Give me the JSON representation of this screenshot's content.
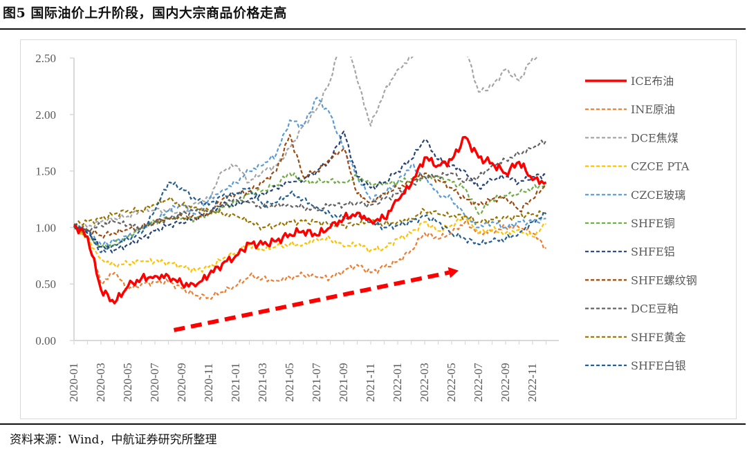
{
  "header": {
    "title": "图5  国际油价上升阶段，国内大宗商品价格走高"
  },
  "footer": {
    "source": "资料来源：Wind，中航证券研究所整理"
  },
  "chart_data": {
    "type": "line",
    "title": "国际油价上升阶段，国内大宗商品价格走高",
    "xlabel": "",
    "ylabel": "",
    "ylim": [
      0,
      2.5
    ],
    "yticks": [
      "0.00",
      "0.50",
      "1.00",
      "1.50",
      "2.00",
      "2.50"
    ],
    "ytick_values": [
      0,
      0.5,
      1.0,
      1.5,
      2.0,
      2.5
    ],
    "xticks": [
      "2020-01",
      "2020-03",
      "2020-05",
      "2020-07",
      "2020-09",
      "2020-11",
      "2021-01",
      "2021-03",
      "2021-05",
      "2021-07",
      "2021-09",
      "2021-11",
      "2022-01",
      "2022-03",
      "2022-05",
      "2022-07",
      "2022-09",
      "2022-11"
    ],
    "x": [
      "2020-01",
      "2020-02",
      "2020-03",
      "2020-04",
      "2020-05",
      "2020-06",
      "2020-07",
      "2020-08",
      "2020-09",
      "2020-10",
      "2020-11",
      "2020-12",
      "2021-01",
      "2021-02",
      "2021-03",
      "2021-04",
      "2021-05",
      "2021-06",
      "2021-07",
      "2021-08",
      "2021-09",
      "2021-10",
      "2021-11",
      "2021-12",
      "2022-01",
      "2022-02",
      "2022-03",
      "2022-04",
      "2022-05",
      "2022-06",
      "2022-07",
      "2022-08",
      "2022-09",
      "2022-10",
      "2022-11",
      "2022-12"
    ],
    "grid": false,
    "legend_position": "right",
    "series": [
      {
        "name": "ICE布油",
        "color": "#ff0000",
        "style": "solid",
        "values": [
          1.02,
          0.92,
          0.45,
          0.33,
          0.48,
          0.55,
          0.57,
          0.57,
          0.5,
          0.48,
          0.58,
          0.68,
          0.75,
          0.86,
          0.85,
          0.88,
          0.94,
          0.97,
          0.93,
          1.0,
          1.08,
          1.13,
          1.06,
          1.08,
          1.24,
          1.38,
          1.62,
          1.55,
          1.6,
          1.8,
          1.62,
          1.57,
          1.48,
          1.58,
          1.42,
          1.4
        ]
      },
      {
        "name": "INE原油",
        "color": "#ed7d31",
        "style": "dashed",
        "values": [
          1.03,
          0.9,
          0.5,
          0.6,
          0.45,
          0.5,
          0.52,
          0.52,
          0.46,
          0.4,
          0.38,
          0.43,
          0.48,
          0.57,
          0.55,
          0.53,
          0.56,
          0.58,
          0.56,
          0.55,
          0.62,
          0.67,
          0.6,
          0.65,
          0.7,
          0.8,
          0.95,
          0.9,
          0.95,
          1.05,
          0.95,
          0.97,
          1.0,
          1.0,
          0.95,
          0.82
        ]
      },
      {
        "name": "DCE焦煤",
        "color": "#a5a5a5",
        "style": "dashed",
        "values": [
          1.02,
          1.0,
          1.05,
          1.08,
          1.1,
          1.15,
          1.15,
          1.15,
          1.12,
          1.22,
          1.25,
          1.5,
          1.55,
          1.4,
          1.5,
          1.55,
          1.7,
          1.9,
          2.05,
          2.3,
          2.8,
          2.3,
          1.9,
          2.2,
          2.4,
          2.5,
          2.8,
          2.9,
          2.7,
          2.6,
          2.2,
          2.25,
          2.4,
          2.3,
          2.5,
          2.55
        ]
      },
      {
        "name": "CZCE PTA",
        "color": "#ffc000",
        "style": "dashed",
        "values": [
          1.02,
          0.9,
          0.72,
          0.67,
          0.68,
          0.7,
          0.7,
          0.69,
          0.66,
          0.62,
          0.65,
          0.72,
          0.78,
          0.85,
          0.8,
          0.83,
          0.85,
          0.85,
          0.9,
          0.9,
          0.83,
          0.85,
          0.8,
          0.82,
          0.9,
          0.95,
          1.05,
          0.97,
          1.02,
          1.1,
          0.95,
          0.98,
          0.95,
          0.98,
          0.92,
          1.03
        ]
      },
      {
        "name": "CZCE玻璃",
        "color": "#5b9bd5",
        "style": "dashed",
        "values": [
          1.0,
          0.97,
          0.85,
          0.88,
          0.92,
          1.0,
          1.05,
          1.15,
          1.2,
          1.12,
          1.25,
          1.33,
          1.4,
          1.5,
          1.55,
          1.65,
          1.95,
          1.9,
          2.15,
          2.0,
          1.7,
          1.45,
          1.25,
          1.3,
          1.4,
          1.55,
          1.45,
          1.3,
          1.25,
          1.1,
          1.0,
          1.05,
          1.0,
          1.05,
          1.05,
          1.08
        ]
      },
      {
        "name": "SHFE铜",
        "color": "#70ad47",
        "style": "dashed",
        "values": [
          1.01,
          0.92,
          0.82,
          0.85,
          0.92,
          1.0,
          1.05,
          1.08,
          1.08,
          1.08,
          1.12,
          1.18,
          1.22,
          1.3,
          1.33,
          1.38,
          1.48,
          1.4,
          1.4,
          1.42,
          1.4,
          1.45,
          1.38,
          1.38,
          1.4,
          1.43,
          1.45,
          1.45,
          1.4,
          1.35,
          1.12,
          1.25,
          1.28,
          1.3,
          1.35,
          1.38
        ]
      },
      {
        "name": "SHFE铝",
        "color": "#264478",
        "style": "dashed",
        "values": [
          1.01,
          0.95,
          0.83,
          0.8,
          0.85,
          0.9,
          0.97,
          1.02,
          1.05,
          1.08,
          1.12,
          1.2,
          1.2,
          1.25,
          1.3,
          1.35,
          1.4,
          1.42,
          1.5,
          1.6,
          1.85,
          1.45,
          1.35,
          1.4,
          1.5,
          1.6,
          1.78,
          1.6,
          1.55,
          1.5,
          1.35,
          1.42,
          1.45,
          1.4,
          1.45,
          1.47
        ]
      },
      {
        "name": "SHFE螺纹钢",
        "color": "#9e480e",
        "style": "dashed",
        "values": [
          1.0,
          0.98,
          0.93,
          0.95,
          0.98,
          1.0,
          1.05,
          1.08,
          1.1,
          1.08,
          1.12,
          1.25,
          1.3,
          1.32,
          1.4,
          1.5,
          1.82,
          1.45,
          1.5,
          1.6,
          1.7,
          1.3,
          1.22,
          1.3,
          1.35,
          1.4,
          1.48,
          1.42,
          1.35,
          1.25,
          1.2,
          1.25,
          1.27,
          1.15,
          1.25,
          1.38
        ]
      },
      {
        "name": "DCE豆粕",
        "color": "#636363",
        "style": "dashed",
        "values": [
          1.01,
          0.98,
          1.02,
          1.05,
          1.02,
          1.0,
          1.05,
          1.08,
          1.12,
          1.15,
          1.15,
          1.2,
          1.25,
          1.22,
          1.18,
          1.2,
          1.2,
          1.18,
          1.15,
          1.2,
          1.2,
          1.22,
          1.2,
          1.25,
          1.3,
          1.38,
          1.45,
          1.45,
          1.48,
          1.4,
          1.45,
          1.55,
          1.6,
          1.65,
          1.7,
          1.77
        ]
      },
      {
        "name": "SHFE黄金",
        "color": "#997300",
        "style": "dashed",
        "values": [
          1.03,
          1.05,
          1.08,
          1.12,
          1.15,
          1.15,
          1.2,
          1.25,
          1.2,
          1.18,
          1.15,
          1.12,
          1.1,
          1.05,
          1.0,
          1.02,
          1.05,
          1.05,
          1.05,
          1.03,
          1.02,
          1.03,
          1.05,
          1.03,
          1.05,
          1.08,
          1.15,
          1.12,
          1.1,
          1.1,
          1.05,
          1.07,
          1.08,
          1.1,
          1.12,
          1.13
        ]
      },
      {
        "name": "SHFE白银",
        "color": "#255e91",
        "style": "dashed",
        "values": [
          1.02,
          0.97,
          0.78,
          0.85,
          0.9,
          0.95,
          1.15,
          1.4,
          1.35,
          1.25,
          1.2,
          1.28,
          1.3,
          1.35,
          1.2,
          1.22,
          1.3,
          1.25,
          1.18,
          1.12,
          1.08,
          1.1,
          1.05,
          1.0,
          1.02,
          1.05,
          1.1,
          1.05,
          0.95,
          0.9,
          0.85,
          0.88,
          0.9,
          0.95,
          1.05,
          1.12
        ]
      }
    ],
    "annotations": [
      {
        "type": "arrow",
        "style": "dashed",
        "color": "#ff0000",
        "meaning": "upward trend",
        "from": {
          "x": "2020-08",
          "y": 0.08
        },
        "to": {
          "x": "2022-05",
          "y": 0.57
        }
      }
    ]
  }
}
